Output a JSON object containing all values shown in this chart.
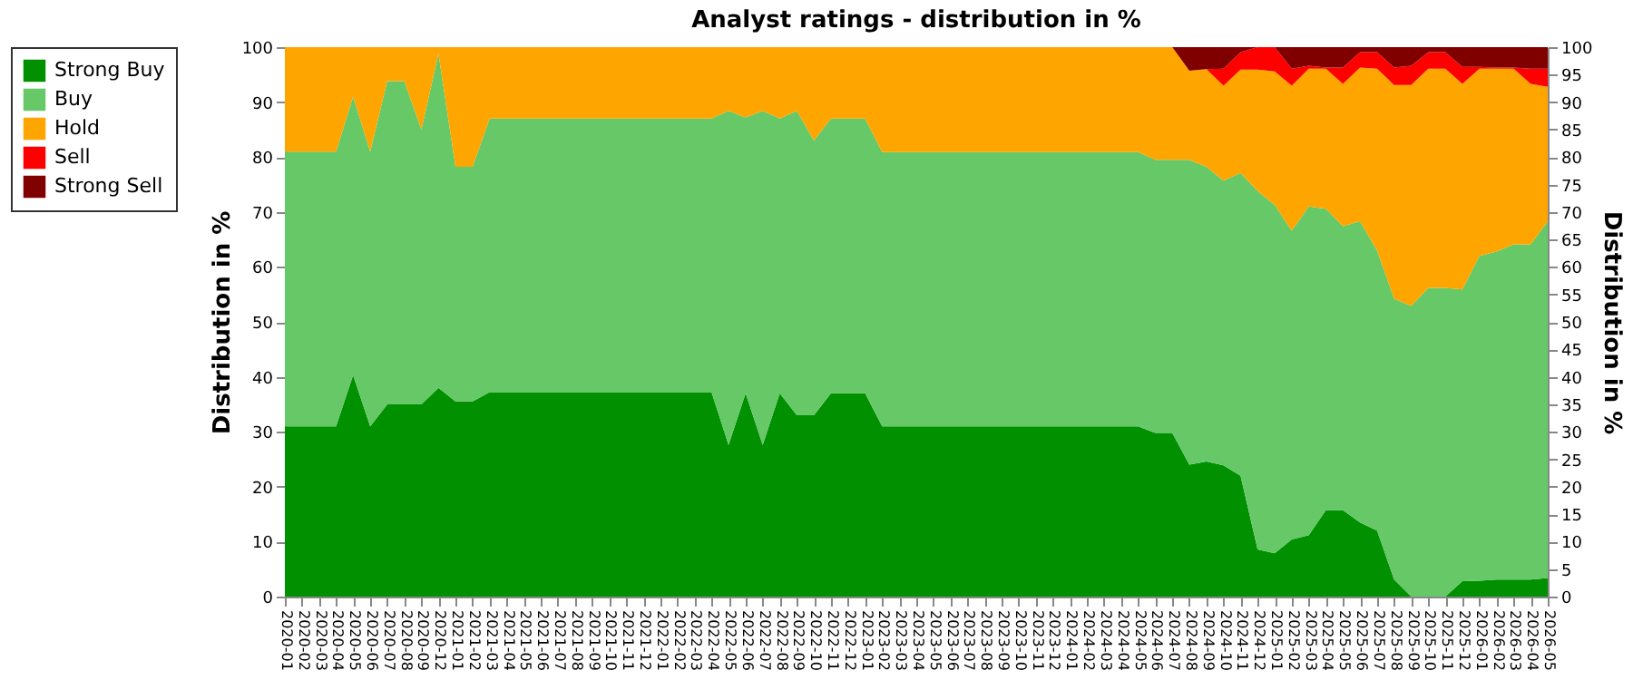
{
  "chart_data": {
    "type": "area",
    "stacked": true,
    "title": "Analyst ratings - distribution in %",
    "ylabel": "Distribution in %",
    "y2label": "Distribution in %",
    "categories": [
      "2020-01",
      "2020-02",
      "2020-03",
      "2020-04",
      "2020-05",
      "2020-06",
      "2020-07",
      "2020-08",
      "2020-09",
      "2020-12",
      "2021-01",
      "2021-02",
      "2021-03",
      "2021-04",
      "2021-05",
      "2021-06",
      "2021-07",
      "2021-08",
      "2021-09",
      "2021-10",
      "2021-11",
      "2021-12",
      "2022-01",
      "2022-02",
      "2022-03",
      "2022-04",
      "2022-05",
      "2022-06",
      "2022-07",
      "2022-08",
      "2022-09",
      "2022-10",
      "2022-11",
      "2022-12",
      "2023-01",
      "2023-02",
      "2023-03",
      "2023-04",
      "2023-05",
      "2023-06",
      "2023-07",
      "2023-08",
      "2023-09",
      "2023-10",
      "2023-11",
      "2023-12",
      "2024-01",
      "2024-02",
      "2024-03",
      "2024-04",
      "2024-05",
      "2024-06",
      "2024-07",
      "2024-08",
      "2024-09",
      "2024-10",
      "2024-11",
      "2024-12",
      "2025-01",
      "2025-02",
      "2025-03",
      "2025-04",
      "2025-05",
      "2025-06",
      "2025-07",
      "2025-08",
      "2025-09",
      "2025-10",
      "2025-11",
      "2025-12",
      "2026-01",
      "2026-02",
      "2026-03",
      "2026-04",
      "2026-05"
    ],
    "series": [
      {
        "name": "Strong Buy",
        "color": "#009000",
        "values": [
          31,
          31,
          31,
          31,
          40.3,
          31,
          35,
          35,
          35,
          38,
          35.5,
          35.5,
          37.2,
          37.2,
          37.2,
          37.2,
          37.2,
          37.2,
          37.2,
          37.2,
          37.2,
          37.2,
          37.2,
          37.2,
          37.2,
          37.2,
          27.6,
          37,
          27.6,
          37,
          33,
          33,
          37,
          37,
          37,
          31,
          31,
          31,
          31,
          31,
          31,
          31,
          31,
          31,
          31,
          31,
          31,
          31,
          31,
          31,
          31,
          29.8,
          29.8,
          24,
          24.6,
          23.9,
          22,
          8.6,
          7.9,
          10.4,
          11.2,
          15.7,
          15.7,
          13.5,
          12,
          3.1,
          0,
          0,
          0,
          2.8,
          2.9,
          3.1,
          3.1,
          3.1,
          3.4
        ]
      },
      {
        "name": "Buy",
        "color": "#66c866",
        "values": [
          50,
          50,
          50,
          50,
          50.7,
          50,
          58.8,
          58.8,
          50,
          60.8,
          42.7,
          42.7,
          49.8,
          49.8,
          49.8,
          49.8,
          49.8,
          49.8,
          49.8,
          49.8,
          49.8,
          49.8,
          49.8,
          49.8,
          49.8,
          49.8,
          60.8,
          50.2,
          60.8,
          50,
          55.4,
          50,
          50,
          50,
          50,
          49.9,
          49.9,
          49.9,
          49.9,
          49.9,
          49.9,
          49.9,
          49.9,
          49.9,
          49.9,
          49.9,
          49.9,
          49.9,
          49.9,
          49.9,
          49.9,
          49.7,
          49.7,
          55.5,
          53.6,
          51.8,
          55.1,
          65.2,
          63.4,
          56.2,
          59.8,
          54.9,
          51.7,
          54.8,
          51,
          51.1,
          52.9,
          56.2,
          56.2,
          53.1,
          59.1,
          59.7,
          61,
          61,
          64.9
        ]
      },
      {
        "name": "Hold",
        "color": "#ffa500",
        "values": [
          19,
          19,
          19,
          19,
          9,
          19,
          6.2,
          6.2,
          15,
          1.2,
          21.8,
          21.8,
          13,
          13,
          13,
          13,
          13,
          13,
          13,
          13,
          13,
          13,
          13,
          13,
          13,
          13,
          11.6,
          12.8,
          11.6,
          13,
          11.6,
          17,
          13,
          13,
          13,
          19.1,
          19.1,
          19.1,
          19.1,
          19.1,
          19.1,
          19.1,
          19.1,
          19.1,
          19.1,
          19.1,
          19.1,
          19.1,
          19.1,
          19.1,
          19.1,
          20.5,
          20.5,
          16.2,
          17.8,
          17.3,
          18.8,
          22.1,
          24.3,
          26.4,
          25.1,
          25.5,
          25.9,
          28,
          33.1,
          38.9,
          40.2,
          39.9,
          39.9,
          37.4,
          34.1,
          33.3,
          32,
          29.2,
          24.5
        ]
      },
      {
        "name": "Sell",
        "color": "#ff0000",
        "values": [
          0,
          0,
          0,
          0,
          0,
          0,
          0,
          0,
          0,
          0,
          0,
          0,
          0,
          0,
          0,
          0,
          0,
          0,
          0,
          0,
          0,
          0,
          0,
          0,
          0,
          0,
          0,
          0,
          0,
          0,
          0,
          0,
          0,
          0,
          0,
          0,
          0,
          0,
          0,
          0,
          0,
          0,
          0,
          0,
          0,
          0,
          0,
          0,
          0,
          0,
          0,
          0,
          0,
          0,
          0,
          3.1,
          3.2,
          4.1,
          4.4,
          3.1,
          0.5,
          0.2,
          3,
          2.8,
          3,
          3.2,
          3.5,
          3,
          3,
          3.1,
          0.3,
          0.2,
          0.2,
          2.8,
          3.3
        ]
      },
      {
        "name": "Strong Sell",
        "color": "#800000",
        "values": [
          0,
          0,
          0,
          0,
          0,
          0,
          0,
          0,
          0,
          0,
          0,
          0,
          0,
          0,
          0,
          0,
          0,
          0,
          0,
          0,
          0,
          0,
          0,
          0,
          0,
          0,
          0,
          0,
          0,
          0,
          0,
          0,
          0,
          0,
          0,
          0,
          0,
          0,
          0,
          0,
          0,
          0,
          0,
          0,
          0,
          0,
          0,
          0,
          0,
          0,
          0,
          0,
          0,
          4.3,
          4,
          3.9,
          0.9,
          0,
          0,
          3.9,
          3.4,
          3.7,
          3.7,
          0.9,
          0.9,
          3.7,
          3.4,
          0.9,
          0.9,
          3.6,
          3.6,
          3.7,
          3.7,
          3.9,
          3.9
        ]
      }
    ],
    "ylim": [
      0,
      100
    ],
    "yticks": [
      0,
      10,
      20,
      30,
      40,
      50,
      60,
      70,
      80,
      90,
      100
    ],
    "y2lim": [
      0,
      100
    ],
    "y2ticks": [
      0,
      5,
      10,
      15,
      20,
      25,
      30,
      35,
      40,
      45,
      50,
      55,
      60,
      65,
      70,
      75,
      80,
      85,
      90,
      95,
      100
    ],
    "grid": "y",
    "legend": "top left"
  }
}
